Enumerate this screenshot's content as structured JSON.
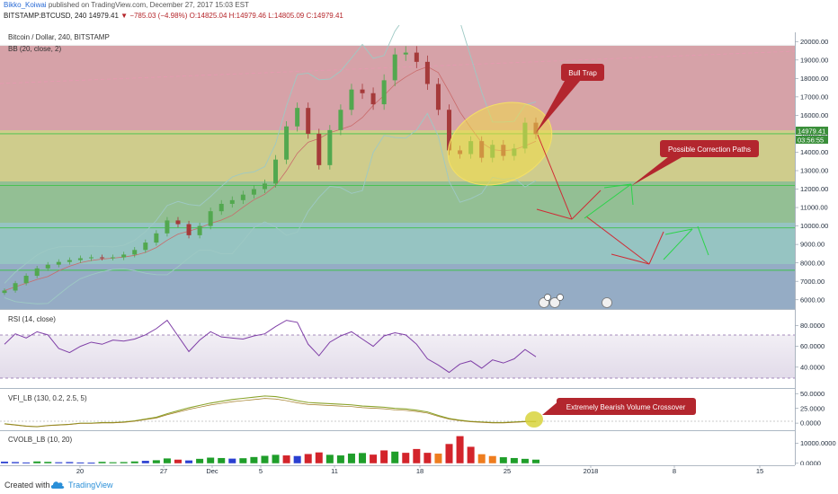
{
  "header": {
    "author": "Bikko_Koiwai",
    "published": "published on TradingView.com, December 27, 2017 15:03 EST",
    "symbol": "BITSTAMP:BTCUSD, 240",
    "price": "14979.41",
    "change": "▼ −785.03 (−4.98%)",
    "ohlc": "O:14825.04 H:14979.46 L:14805.09 C:14979.41"
  },
  "footer": {
    "created_with": "Created with",
    "brand": "TradingView"
  },
  "chart_data": [
    {
      "type": "line",
      "title": "Bitcoin / Dollar, 240, BITSTAMP",
      "subtitle": "BB (20, close, 2)",
      "x_ticks": [
        "20",
        "27",
        "Dec",
        "5",
        "11",
        "18",
        "25",
        "2018",
        "8",
        "15"
      ],
      "ylim": [
        5500,
        20500
      ],
      "y_ticks": [
        "20000.00",
        "19000.00",
        "18000.00",
        "17000.00",
        "16000.00",
        "15000.00",
        "14000.00",
        "13000.00",
        "12000.00",
        "11000.00",
        "10000.00",
        "9000.00",
        "8000.00",
        "7000.00",
        "6000.00"
      ],
      "price_label": "14979.41",
      "countdown_label": "03:56:55",
      "horizontal_levels": [
        19800,
        15000,
        12200,
        9900,
        7600
      ],
      "path_x": [
        0,
        3,
        6,
        9,
        12,
        15,
        18,
        21,
        24,
        27,
        30,
        33,
        36,
        39,
        42,
        45,
        48,
        51,
        54,
        57,
        60,
        63,
        66,
        69,
        72,
        75,
        78,
        81,
        84,
        87,
        90,
        93,
        96,
        99,
        102,
        105,
        108,
        111,
        114,
        117,
        120,
        123,
        126,
        129,
        132,
        135,
        138,
        141,
        144,
        147
      ],
      "path_close": [
        6500,
        6900,
        7300,
        7700,
        7900,
        8050,
        8150,
        8250,
        8300,
        8280,
        8300,
        8450,
        8700,
        9100,
        9600,
        10300,
        10100,
        9500,
        10000,
        10800,
        11200,
        11400,
        11700,
        12000,
        12300,
        13600,
        15400,
        16400,
        15000,
        13300,
        15200,
        16300,
        17400,
        17200,
        16600,
        17900,
        19300,
        19400,
        18900,
        17700,
        16300,
        14100,
        13900,
        14600,
        13700,
        14400,
        13800,
        14200,
        15600,
        14979
      ],
      "annotations": [
        "Bull Trap",
        "Possible Correction Paths"
      ]
    },
    {
      "type": "line",
      "title": "RSI (14, close)",
      "ylim": [
        20,
        95
      ],
      "y_ticks": [
        "80.0000",
        "60.0000",
        "40.0000"
      ],
      "bands": [
        70,
        30
      ],
      "values": [
        62,
        72,
        68,
        74,
        71,
        58,
        54,
        60,
        64,
        62,
        66,
        65,
        67,
        71,
        77,
        85,
        70,
        55,
        66,
        74,
        69,
        68,
        67,
        70,
        72,
        79,
        85,
        83,
        62,
        51,
        64,
        70,
        74,
        67,
        60,
        70,
        73,
        71,
        62,
        48,
        42,
        35,
        43,
        46,
        39,
        47,
        44,
        48,
        57,
        50
      ]
    },
    {
      "type": "line",
      "title": "VFI_LB (130, 0.2, 2.5, 5)",
      "ylim": [
        -12,
        58
      ],
      "y_ticks": [
        "50.0000",
        "25.0000",
        "0.0000"
      ],
      "values": [
        -1,
        -3,
        -5,
        -6,
        -4,
        -3,
        -2,
        0,
        0,
        1,
        1,
        2,
        4,
        7,
        10,
        16,
        21,
        26,
        30,
        34,
        37,
        40,
        42,
        44,
        46,
        45,
        42,
        38,
        35,
        34,
        33,
        32,
        31,
        29,
        28,
        27,
        25,
        24,
        22,
        19,
        13,
        8,
        5,
        3,
        2,
        1,
        1,
        2,
        3,
        3
      ],
      "annotations": [
        "Extremely Bearish Volume Crossover"
      ]
    },
    {
      "type": "bar",
      "title": "CVOLB_LB (10, 20)",
      "ylim": [
        -1000,
        16000
      ],
      "y_ticks": [
        "10000.0000",
        "0.0000"
      ],
      "values": [
        800,
        600,
        400,
        900,
        700,
        500,
        600,
        400,
        300,
        700,
        500,
        600,
        900,
        1200,
        1500,
        2400,
        1800,
        1400,
        2200,
        2800,
        2600,
        2300,
        2500,
        3100,
        3700,
        4200,
        3900,
        3600,
        4600,
        5400,
        4200,
        3900,
        4800,
        5100,
        4300,
        6400,
        5800,
        5200,
        7100,
        5200,
        4800,
        9600,
        13500,
        8200,
        4500,
        3600,
        3000,
        2600,
        2200,
        1800
      ],
      "colors": [
        "blue",
        "blue",
        "blue",
        "green",
        "green",
        "blue",
        "blue",
        "blue",
        "blue",
        "green",
        "green",
        "green",
        "green",
        "blue",
        "green",
        "green",
        "red",
        "blue",
        "green",
        "green",
        "green",
        "blue",
        "green",
        "green",
        "green",
        "green",
        "red",
        "blue",
        "red",
        "red",
        "green",
        "green",
        "green",
        "green",
        "red",
        "red",
        "green",
        "red",
        "red",
        "red",
        "orange",
        "red",
        "red",
        "red",
        "orange",
        "orange",
        "green",
        "green",
        "green",
        "green"
      ]
    }
  ]
}
